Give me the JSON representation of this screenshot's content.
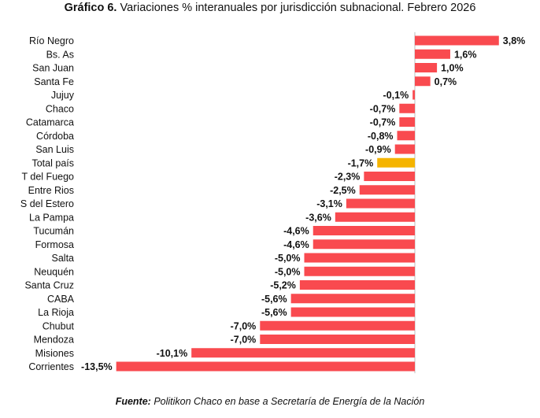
{
  "title": {
    "prefix": "Gráfico 6.",
    "text": "Variaciones % interanuales por jurisdicción subnacional. Febrero 2026"
  },
  "source": {
    "prefix": "Fuente:",
    "text": "Politikon Chaco en base a Secretaría de Energía de la Nación"
  },
  "colors": {
    "bar": "#f94a4f",
    "highlight": "#f5b400",
    "axis": "#bdbdbd"
  },
  "chart_data": {
    "type": "bar",
    "orientation": "horizontal",
    "title": "Gráfico 6. Variaciones % interanuales por jurisdicción subnacional. Febrero 2026",
    "xlabel": "",
    "ylabel": "",
    "xlim": [
      -13.5,
      3.8
    ],
    "grid": false,
    "highlight": "Total país",
    "categories": [
      "Río Negro",
      "Bs. As",
      "San Juan",
      "Santa Fe",
      "Jujuy",
      "Chaco",
      "Catamarca",
      "Córdoba",
      "San Luis",
      "Total país",
      "T del Fuego",
      "Entre Rios",
      "S del Estero",
      "La Pampa",
      "Tucumán",
      "Formosa",
      "Salta",
      "Neuquén",
      "Santa Cruz",
      "CABA",
      "La Rioja",
      "Chubut",
      "Mendoza",
      "Misiones",
      "Corrientes"
    ],
    "values": [
      3.8,
      1.6,
      1.0,
      0.7,
      -0.1,
      -0.7,
      -0.7,
      -0.8,
      -0.9,
      -1.7,
      -2.3,
      -2.5,
      -3.1,
      -3.6,
      -4.6,
      -4.6,
      -5.0,
      -5.0,
      -5.2,
      -5.6,
      -5.6,
      -7.0,
      -7.0,
      -10.1,
      -13.5
    ],
    "labels": [
      "3,8%",
      "1,6%",
      "1,0%",
      "0,7%",
      "-0,1%",
      "-0,7%",
      "-0,7%",
      "-0,8%",
      "-0,9%",
      "-1,7%",
      "-2,3%",
      "-2,5%",
      "-3,1%",
      "-3,6%",
      "-4,6%",
      "-4,6%",
      "-5,0%",
      "-5,0%",
      "-5,2%",
      "-5,6%",
      "-5,6%",
      "-7,0%",
      "-7,0%",
      "-10,1%",
      "-13,5%"
    ]
  }
}
